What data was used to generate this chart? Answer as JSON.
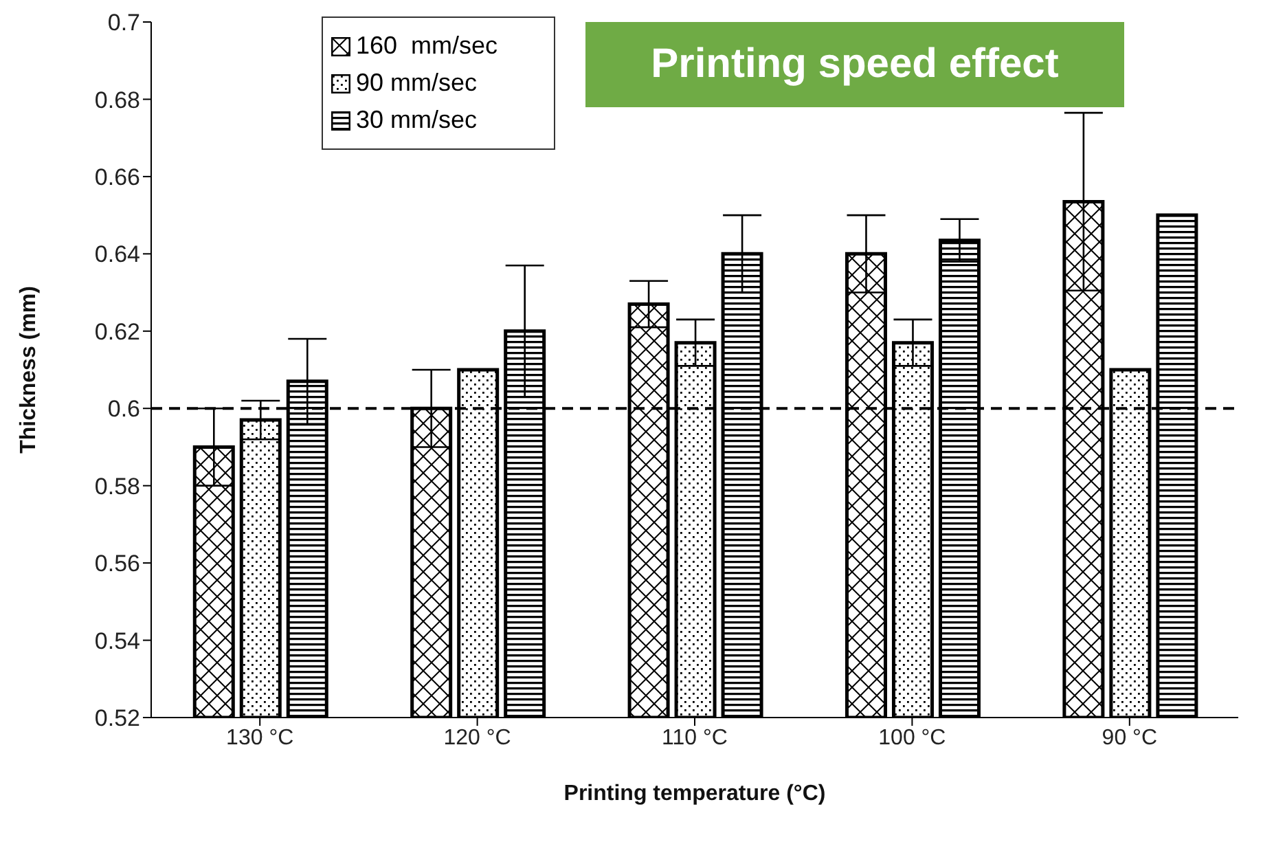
{
  "chart_data": {
    "type": "bar",
    "title": "Printing speed effect",
    "xlabel": "Printing temperature (°C)",
    "ylabel": "Thickness (mm)",
    "categories": [
      "130 °C",
      "120 °C",
      "110 °C",
      "100 °C",
      "90 °C"
    ],
    "series": [
      {
        "name": "160  mm/sec",
        "color": "#000000",
        "values": [
          0.59,
          0.6,
          0.627,
          0.64,
          0.6535
        ],
        "errors": [
          0.01,
          0.01,
          0.006,
          0.01,
          0.023
        ]
      },
      {
        "name": "90 mm/sec",
        "color": "#000000",
        "values": [
          0.597,
          0.61,
          0.617,
          0.617,
          0.61
        ],
        "errors": [
          0.005,
          null,
          0.006,
          0.006,
          null
        ]
      },
      {
        "name": "30 mm/sec",
        "color": "#000000",
        "values": [
          0.607,
          0.62,
          0.64,
          0.6435,
          0.65
        ],
        "errors": [
          0.011,
          0.017,
          0.01,
          0.0055,
          null
        ]
      }
    ],
    "ylim": [
      0.52,
      0.7
    ],
    "yticks": [
      0.52,
      0.54,
      0.56,
      0.58,
      0.6,
      0.62,
      0.64,
      0.66,
      0.68,
      0.7
    ],
    "ref_lines": [
      {
        "axis": "y",
        "value": 0.6,
        "line_style": "dashed",
        "color": "#000000"
      }
    ],
    "grid": false,
    "legend": "top left"
  }
}
